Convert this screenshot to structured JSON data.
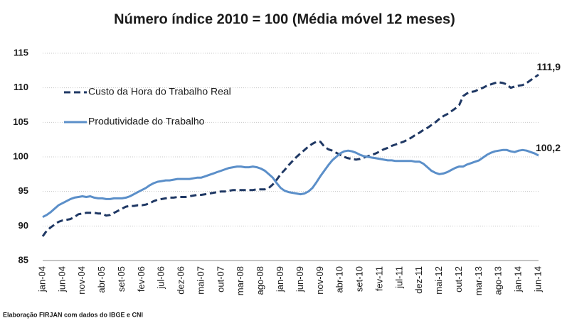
{
  "chart_data": {
    "type": "line",
    "title": "Número índice 2010 = 100 (Média móvel 12 meses)",
    "source": "Elaboração FIRJAN com dados do IBGE e CNI",
    "categories": [
      "jan-04",
      null,
      null,
      null,
      null,
      "jun-04",
      null,
      null,
      null,
      null,
      "nov-04",
      null,
      null,
      null,
      null,
      "abr-05",
      null,
      null,
      null,
      null,
      "set-05",
      null,
      null,
      null,
      null,
      "fev-06",
      null,
      null,
      null,
      null,
      "jul-06",
      null,
      null,
      null,
      null,
      "dez-06",
      null,
      null,
      null,
      null,
      "mai-07",
      null,
      null,
      null,
      null,
      "out-07",
      null,
      null,
      null,
      null,
      "mar-08",
      null,
      null,
      null,
      null,
      "ago-08",
      null,
      null,
      null,
      null,
      "jan-09",
      null,
      null,
      null,
      null,
      "jun-09",
      null,
      null,
      null,
      null,
      "nov-09",
      null,
      null,
      null,
      null,
      "abr-10",
      null,
      null,
      null,
      null,
      "set-10",
      null,
      null,
      null,
      null,
      "fev-11",
      null,
      null,
      null,
      null,
      "jul-11",
      null,
      null,
      null,
      null,
      "dez-11",
      null,
      null,
      null,
      null,
      "mai-12",
      null,
      null,
      null,
      null,
      "out-12",
      null,
      null,
      null,
      null,
      "mar-13",
      null,
      null,
      null,
      null,
      "ago-13",
      null,
      null,
      null,
      null,
      "jan-14",
      null,
      null,
      null,
      null,
      "jun-14"
    ],
    "series": [
      {
        "name": "Custo da Hora do Trabalho Real",
        "color": "#1f3864",
        "style": "dashed",
        "values": [
          88.5,
          89.3,
          89.8,
          90.2,
          90.6,
          90.8,
          90.9,
          91.0,
          91.3,
          91.7,
          91.8,
          91.9,
          91.9,
          91.9,
          91.8,
          91.8,
          91.5,
          91.6,
          91.9,
          92.2,
          92.5,
          92.8,
          92.9,
          92.9,
          93.0,
          93.0,
          93.1,
          93.3,
          93.6,
          93.8,
          93.9,
          94.0,
          94.1,
          94.1,
          94.2,
          94.2,
          94.2,
          94.3,
          94.4,
          94.5,
          94.5,
          94.6,
          94.7,
          94.8,
          94.9,
          95.0,
          95.0,
          95.1,
          95.2,
          95.2,
          95.2,
          95.2,
          95.2,
          95.2,
          95.3,
          95.3,
          95.3,
          95.5,
          96.0,
          96.7,
          97.5,
          98.1,
          98.8,
          99.4,
          100.0,
          100.5,
          101.0,
          101.5,
          101.9,
          102.2,
          102.2,
          101.5,
          101.1,
          100.9,
          100.6,
          100.3,
          100.0,
          99.8,
          99.7,
          99.6,
          99.7,
          99.9,
          100.1,
          100.3,
          100.5,
          100.8,
          101.1,
          101.3,
          101.6,
          101.8,
          102.0,
          102.2,
          102.5,
          102.8,
          103.2,
          103.5,
          103.9,
          104.2,
          104.6,
          105.0,
          105.5,
          105.9,
          106.2,
          106.6,
          107.0,
          107.5,
          108.8,
          109.2,
          109.4,
          109.5,
          109.8,
          110.0,
          110.3,
          110.5,
          110.7,
          110.8,
          110.7,
          110.5,
          110.0,
          110.2,
          110.3,
          110.4,
          110.7,
          111.1,
          111.5,
          111.9
        ],
        "value_labels": [
          null,
          null,
          null,
          null,
          null,
          null,
          null,
          null,
          null,
          null,
          null,
          null,
          null,
          null,
          null,
          null,
          null,
          null,
          null,
          null,
          null,
          null,
          null,
          null,
          null,
          null,
          null,
          null,
          null,
          null,
          null,
          null,
          null,
          null,
          null,
          null,
          null,
          null,
          null,
          null,
          null,
          null,
          null,
          null,
          null,
          null,
          null,
          null,
          null,
          null,
          null,
          null,
          null,
          null,
          null,
          null,
          null,
          null,
          null,
          null,
          null,
          null,
          null,
          null,
          null,
          null,
          null,
          null,
          null,
          null,
          null,
          null,
          null,
          null,
          null,
          null,
          null,
          null,
          null,
          null,
          null,
          null,
          null,
          null,
          null,
          null,
          null,
          null,
          null,
          null,
          null,
          null,
          null,
          null,
          null,
          null,
          null,
          null,
          null,
          null,
          null,
          null,
          null,
          null,
          null,
          null,
          null,
          null,
          null,
          null,
          null,
          null,
          null,
          null,
          null,
          null,
          null,
          null,
          null,
          null,
          null,
          null,
          null,
          null,
          null,
          "111,9"
        ]
      },
      {
        "name": "Produtividade do Trabalho",
        "color": "#5b8fc9",
        "style": "solid",
        "values": [
          91.3,
          91.6,
          92.0,
          92.5,
          93.0,
          93.3,
          93.6,
          93.9,
          94.1,
          94.2,
          94.3,
          94.2,
          94.3,
          94.1,
          94.0,
          94.0,
          93.9,
          93.9,
          94.0,
          94.0,
          94.0,
          94.1,
          94.3,
          94.6,
          94.9,
          95.2,
          95.5,
          95.9,
          96.2,
          96.4,
          96.5,
          96.6,
          96.6,
          96.7,
          96.8,
          96.8,
          96.8,
          96.8,
          96.9,
          97.0,
          97.0,
          97.2,
          97.4,
          97.6,
          97.8,
          98.0,
          98.2,
          98.4,
          98.5,
          98.6,
          98.6,
          98.5,
          98.5,
          98.6,
          98.5,
          98.3,
          98.0,
          97.5,
          97.0,
          96.2,
          95.5,
          95.1,
          94.9,
          94.8,
          94.7,
          94.6,
          94.7,
          95.0,
          95.5,
          96.3,
          97.2,
          98.0,
          98.8,
          99.5,
          100.0,
          100.5,
          100.8,
          100.9,
          100.8,
          100.6,
          100.3,
          100.1,
          100.0,
          99.9,
          99.8,
          99.7,
          99.6,
          99.5,
          99.5,
          99.4,
          99.4,
          99.4,
          99.4,
          99.4,
          99.3,
          99.3,
          99.0,
          98.5,
          98.0,
          97.7,
          97.5,
          97.6,
          97.8,
          98.1,
          98.4,
          98.6,
          98.6,
          98.9,
          99.1,
          99.3,
          99.5,
          99.9,
          100.3,
          100.6,
          100.8,
          100.9,
          101.0,
          101.0,
          100.8,
          100.7,
          100.9,
          101.0,
          100.9,
          100.7,
          100.5,
          100.2
        ],
        "value_labels": [
          null,
          null,
          null,
          null,
          null,
          null,
          null,
          null,
          null,
          null,
          null,
          null,
          null,
          null,
          null,
          null,
          null,
          null,
          null,
          null,
          null,
          null,
          null,
          null,
          null,
          null,
          null,
          null,
          null,
          null,
          null,
          null,
          null,
          null,
          null,
          null,
          null,
          null,
          null,
          null,
          null,
          null,
          null,
          null,
          null,
          null,
          null,
          null,
          null,
          null,
          null,
          null,
          null,
          null,
          null,
          null,
          null,
          null,
          null,
          null,
          null,
          null,
          null,
          null,
          null,
          null,
          null,
          null,
          null,
          null,
          null,
          null,
          null,
          null,
          null,
          null,
          null,
          null,
          null,
          null,
          null,
          null,
          null,
          null,
          null,
          null,
          null,
          null,
          null,
          null,
          null,
          null,
          null,
          null,
          null,
          null,
          null,
          null,
          null,
          null,
          null,
          null,
          null,
          null,
          null,
          null,
          null,
          null,
          null,
          null,
          null,
          null,
          null,
          null,
          null,
          null,
          null,
          null,
          null,
          null,
          null,
          null,
          null,
          null,
          null,
          "100,2"
        ]
      }
    ],
    "ylim": [
      85,
      115
    ],
    "yticks": [
      85,
      90,
      95,
      100,
      105,
      110,
      115
    ],
    "grid": true,
    "legend": "upper left"
  }
}
